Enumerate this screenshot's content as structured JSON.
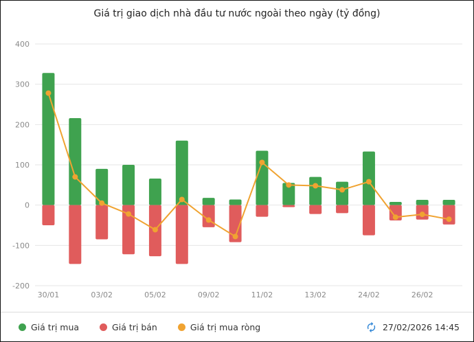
{
  "title": "Giá trị giao dịch nhà đầu tư nước ngoài theo ngày (tỷ đồng)",
  "legend": [
    {
      "label": "Giá trị mua",
      "color": "#3fa24f"
    },
    {
      "label": "Giá trị bán",
      "color": "#e05c5c"
    },
    {
      "label": "Giá trị mua ròng",
      "color": "#f0a331"
    }
  ],
  "footer": {
    "timestamp": "27/02/2026 14:45",
    "refresh_icon": "sync-icon",
    "refresh_icon_color": "#2f86d6"
  },
  "chart_data": {
    "type": "bar",
    "subtype": "positive/negative bars with line overlay",
    "title": "Giá trị giao dịch nhà đầu tư nước ngoài theo ngày (tỷ đồng)",
    "xlabel": "",
    "ylabel": "",
    "ylim": [
      -200,
      400
    ],
    "y_ticks": [
      400,
      300,
      200,
      100,
      0,
      -100,
      -200
    ],
    "grid": true,
    "legend_position": "bottom",
    "categories": [
      "30/01",
      "",
      "03/02",
      "",
      "05/02",
      "",
      "09/02",
      "",
      "11/02",
      "",
      "13/02",
      "",
      "24/02",
      "",
      "26/02",
      ""
    ],
    "x_tick_labels": [
      "30/01",
      "",
      "03/02",
      "",
      "05/02",
      "",
      "09/02",
      "",
      "11/02",
      "",
      "13/02",
      "",
      "24/02",
      "",
      "26/02",
      ""
    ],
    "series": [
      {
        "name": "Giá trị mua",
        "type": "bar",
        "color": "#3fa24f",
        "values": [
          328,
          216,
          90,
          100,
          66,
          160,
          18,
          14,
          135,
          55,
          70,
          58,
          133,
          8,
          13,
          13
        ]
      },
      {
        "name": "Giá trị bán",
        "type": "bar",
        "color": "#e05c5c",
        "values": [
          -50,
          -146,
          -85,
          -122,
          -127,
          -146,
          -55,
          -92,
          -29,
          -5,
          -22,
          -20,
          -75,
          -38,
          -36,
          -48
        ]
      },
      {
        "name": "Giá trị mua ròng",
        "type": "line",
        "color": "#f0a331",
        "values": [
          278,
          70,
          5,
          -22,
          -61,
          14,
          -37,
          -78,
          106,
          50,
          48,
          38,
          58,
          -30,
          -23,
          -35
        ]
      }
    ]
  }
}
